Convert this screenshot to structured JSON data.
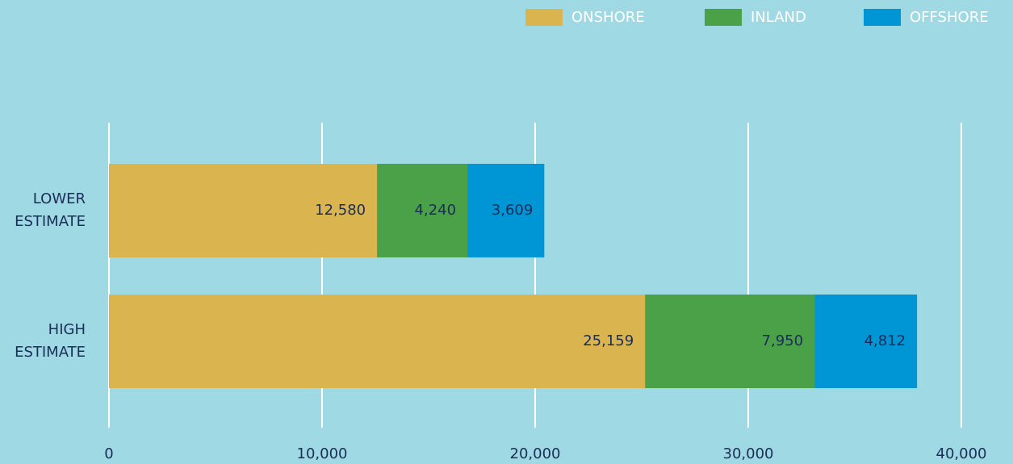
{
  "chart_data": {
    "type": "stacked-barh",
    "categories": [
      "LOWER ESTIMATE",
      "HIGH ESTIMATE"
    ],
    "series": [
      {
        "name": "ONSHORE",
        "color": "#dab54f",
        "values": [
          12580,
          25159
        ],
        "value_labels": [
          "12,580",
          "25,159"
        ]
      },
      {
        "name": "INLAND",
        "color": "#4aa147",
        "values": [
          4240,
          7950
        ],
        "value_labels": [
          "4,240",
          "7,950"
        ]
      },
      {
        "name": "OFFSHORE",
        "color": "#0096d6",
        "values": [
          3609,
          4812
        ],
        "value_labels": [
          "3,609",
          "4,812"
        ]
      }
    ],
    "xlim": [
      0,
      40000
    ],
    "xticks": [
      0,
      {
        "value": 10000,
        "label": "10,000"
      },
      {
        "value": 20000,
        "label": "20,000"
      },
      {
        "value": 30000,
        "label": "30,000"
      },
      {
        "value": 40000,
        "label": "40,000"
      }
    ],
    "grid": true,
    "legend": "top-right"
  }
}
